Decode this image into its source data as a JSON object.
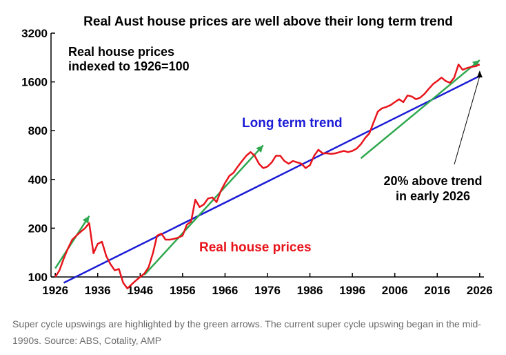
{
  "chart_data": {
    "type": "line",
    "title": "Real Aust house prices are well above their long term trend",
    "subtitle_lines": [
      "Real house prices",
      "indexed to 1926=100"
    ],
    "y_scale": "log",
    "ylim": [
      100,
      3200
    ],
    "xlim": [
      1925,
      2027
    ],
    "y_ticks": [
      100,
      200,
      400,
      800,
      1600,
      3200
    ],
    "x_ticks": [
      1926,
      1936,
      1946,
      1956,
      1966,
      1976,
      1986,
      1996,
      2006,
      2016,
      2026
    ],
    "grid": false,
    "colors": {
      "prices": "#e8141b",
      "trend": "#1c1cd6",
      "upswing": "#2fa84f",
      "annotation": "#000000"
    },
    "series": [
      {
        "name": "Real house prices",
        "x": [
          1926,
          1927,
          1928,
          1929,
          1930,
          1931,
          1932,
          1933,
          1934,
          1935,
          1936,
          1937,
          1938,
          1939,
          1940,
          1941,
          1942,
          1943,
          1944,
          1945,
          1946,
          1947,
          1948,
          1949,
          1950,
          1951,
          1952,
          1953,
          1954,
          1955,
          1956,
          1957,
          1958,
          1959,
          1960,
          1961,
          1962,
          1963,
          1964,
          1965,
          1966,
          1967,
          1968,
          1969,
          1970,
          1971,
          1972,
          1973,
          1974,
          1975,
          1976,
          1977,
          1978,
          1979,
          1980,
          1981,
          1982,
          1983,
          1984,
          1985,
          1986,
          1987,
          1988,
          1989,
          1990,
          1991,
          1992,
          1993,
          1994,
          1995,
          1996,
          1997,
          1998,
          1999,
          2000,
          2001,
          2002,
          2003,
          2004,
          2005,
          2006,
          2007,
          2008,
          2009,
          2010,
          2011,
          2012,
          2013,
          2014,
          2015,
          2016,
          2017,
          2018,
          2019,
          2020,
          2021,
          2022,
          2023,
          2024,
          2025,
          2026
        ],
        "values": [
          100,
          110,
          130,
          150,
          170,
          180,
          190,
          200,
          215,
          140,
          160,
          165,
          135,
          120,
          110,
          112,
          92,
          85,
          90,
          95,
          100,
          105,
          115,
          140,
          180,
          185,
          170,
          170,
          172,
          175,
          180,
          210,
          220,
          300,
          270,
          280,
          305,
          310,
          290,
          340,
          380,
          420,
          440,
          480,
          520,
          560,
          590,
          560,
          500,
          470,
          480,
          510,
          560,
          560,
          520,
          500,
          520,
          510,
          500,
          470,
          490,
          560,
          610,
          580,
          580,
          575,
          580,
          590,
          600,
          590,
          600,
          620,
          660,
          720,
          770,
          900,
          1050,
          1100,
          1120,
          1150,
          1200,
          1250,
          1200,
          1320,
          1300,
          1250,
          1280,
          1350,
          1450,
          1550,
          1620,
          1700,
          1620,
          1580,
          1700,
          2050,
          1900,
          1950,
          1980,
          2000,
          2050
        ]
      },
      {
        "name": "Long term trend",
        "x": [
          1928,
          2026
        ],
        "values": [
          92,
          1740
        ]
      }
    ],
    "upswing_arrows": [
      {
        "x": [
          1926,
          1934
        ],
        "values": [
          113,
          238
        ]
      },
      {
        "x": [
          1947,
          1975
        ],
        "values": [
          103,
          650
        ]
      },
      {
        "x": [
          1998,
          2026
        ],
        "values": [
          540,
          2180
        ]
      }
    ],
    "annotations": {
      "trend_label": "Long term trend",
      "prices_label": "Real house prices",
      "callout_lines": [
        "20% above trend",
        "in early 2026"
      ],
      "callout_target": {
        "x": 2026,
        "value": 1880
      }
    }
  },
  "caption": "Super cycle upswings are highlighted by the green arrows. The current super cycle upswing began in the mid-1990s. Source: ABS, Cotality, AMP"
}
